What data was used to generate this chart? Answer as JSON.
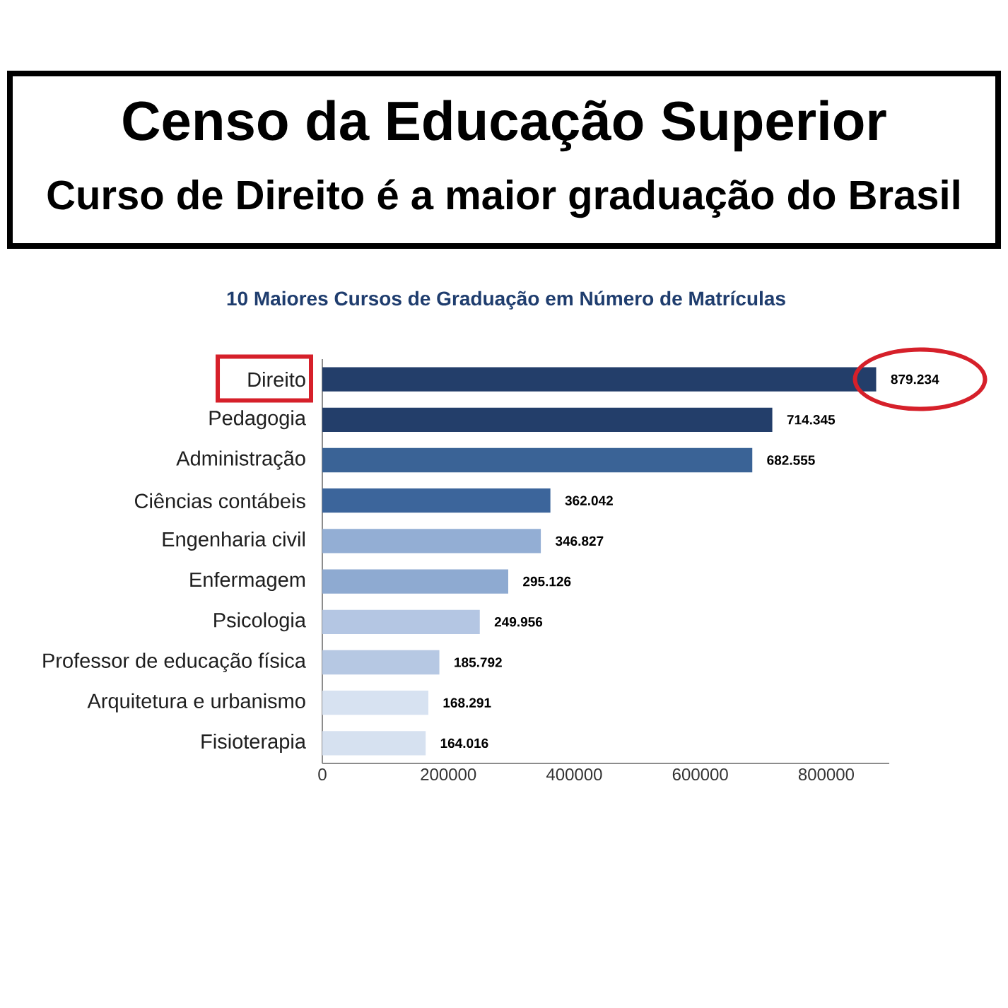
{
  "chart_data": {
    "type": "bar",
    "orientation": "horizontal",
    "title": "Censo da Educação Superior",
    "subtitle": "Curso de Direito é a maior graduação do Brasil",
    "annotations": [
      "10 Maiores Cursos de Graduação em Número de Matrículas"
    ],
    "categories": [
      "Direito",
      "Pedagogia",
      "Administração",
      "Ciências contábeis",
      "Engenharia civil",
      "Enfermagem",
      "Psicologia",
      "Professor de educação física",
      "Arquitetura e urbanismo",
      "Fisioterapia"
    ],
    "values": [
      879234,
      714345,
      682555,
      362042,
      346827,
      295126,
      249956,
      185792,
      168291,
      164016
    ],
    "value_labels": [
      "879.234",
      "714.345",
      "682.555",
      "362.042",
      "346.827",
      "295.126",
      "249.956",
      "185.792",
      "168.291",
      "164.016"
    ],
    "colors": [
      "#233E6A",
      "#233E6A",
      "#3A6396",
      "#3C659B",
      "#93AED4",
      "#8EAAD1",
      "#B4C6E3",
      "#B6C8E3",
      "#D7E2F1",
      "#D6E1F0"
    ],
    "xlim": [
      0,
      900000
    ],
    "xticks": [
      0,
      200000,
      400000,
      600000,
      800000
    ]
  }
}
